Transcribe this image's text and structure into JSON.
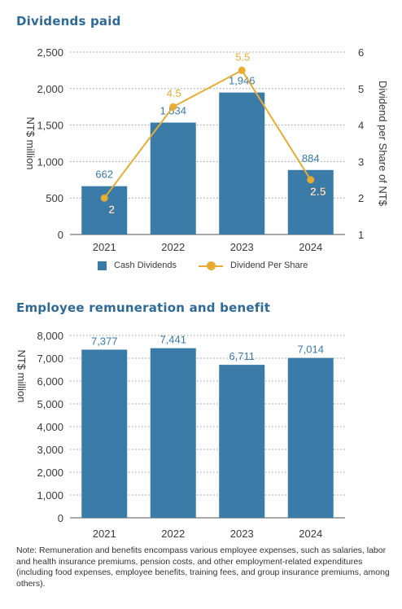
{
  "section1": {
    "title": "Dividends paid"
  },
  "section2": {
    "title": "Employee remuneration and benefit"
  },
  "legend": {
    "bars": "Cash Dividends",
    "line": "Dividend Per Share"
  },
  "colors": {
    "bar": "#3a7ba8",
    "line": "#e8ac32",
    "title": "#2e6a95"
  },
  "note": {
    "label": "Note:",
    "text": "Remuneration and benefits encompass various employee expenses, such as salaries, labor and health insurance premiums, pension costs, and other employment-related expenditures (including food expenses, employee benefits, training fees, and group insurance premiums, among others)."
  },
  "chart_data": [
    {
      "type": "bar",
      "title": "Dividends paid",
      "categories": [
        "2021",
        "2022",
        "2023",
        "2024"
      ],
      "series": [
        {
          "name": "Cash Dividends",
          "values": [
            662,
            1534,
            1946,
            884
          ],
          "labels": [
            "662",
            "1,534",
            "1,946",
            "884"
          ]
        },
        {
          "name": "Dividend Per Share",
          "type": "line",
          "axis": "right",
          "values": [
            2,
            4.5,
            5.5,
            2.5
          ],
          "labels": [
            "2",
            "4.5",
            "5.5",
            "2.5"
          ]
        }
      ],
      "ylabel": "NT$ million",
      "ylabel_right": "Dividend per Share of NT$",
      "ylim": [
        0,
        2500
      ],
      "yticks": [
        "0",
        "500",
        "1,000",
        "1,500",
        "2,000",
        "2,500"
      ],
      "ylim_right": [
        1,
        6
      ],
      "yticks_right": [
        "1",
        "2",
        "3",
        "4",
        "5",
        "6"
      ],
      "grid": true,
      "legend": "bottom"
    },
    {
      "type": "bar",
      "title": "Employee remuneration and benefit",
      "categories": [
        "2021",
        "2022",
        "2023",
        "2024"
      ],
      "series": [
        {
          "values": [
            7377,
            7441,
            6711,
            7014
          ],
          "labels": [
            "7,377",
            "7,441",
            "6,711",
            "7,014"
          ]
        }
      ],
      "ylabel": "NT$ million",
      "ylim": [
        0,
        8000
      ],
      "yticks": [
        "0",
        "1,000",
        "2,000",
        "3,000",
        "4,000",
        "5,000",
        "6,000",
        "7,000",
        "8,000"
      ],
      "grid": true
    }
  ]
}
